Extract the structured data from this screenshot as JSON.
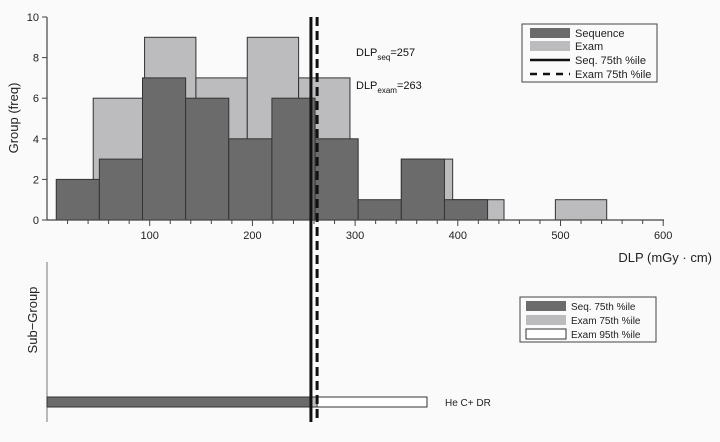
{
  "chart_data": [
    {
      "type": "bar",
      "subtype": "histogram",
      "panel": "top",
      "title": "",
      "xlabel": "DLP (mGy · cm)",
      "ylabel": "Group (freq)",
      "xlim": [
        0,
        600
      ],
      "ylim": [
        0,
        10
      ],
      "x_ticks": [
        100,
        200,
        300,
        400,
        500,
        600
      ],
      "y_ticks": [
        0,
        2,
        4,
        6,
        8,
        10
      ],
      "grid": false,
      "legend_position": "upper right",
      "series": [
        {
          "name": "Sequence",
          "color": "#6b6b6b",
          "bin_edges": [
            9,
            51,
            93,
            135,
            177,
            219,
            261,
            303,
            345,
            387,
            429
          ],
          "values": [
            2,
            3,
            7,
            6,
            4,
            6,
            4,
            1,
            3,
            1
          ]
        },
        {
          "name": "Exam",
          "color": "#bcbcbf",
          "bin_edges": [
            45,
            95,
            145,
            195,
            245,
            295,
            345,
            395,
            445,
            495,
            545
          ],
          "values": [
            6,
            9,
            7,
            9,
            7,
            0,
            3,
            1,
            0,
            1
          ]
        }
      ],
      "reference_lines": [
        {
          "name": "Seq. 75th %ile",
          "x": 257,
          "style": "solid",
          "color": "#111111"
        },
        {
          "name": "Exam 75th %ile",
          "x": 263,
          "style": "dashed",
          "color": "#111111"
        }
      ],
      "annotations": [
        {
          "text": "DLP",
          "sub": "seq",
          "value": "=257"
        },
        {
          "text": "DLP",
          "sub": "exam",
          "value": "=263"
        }
      ],
      "legend": [
        "Sequence",
        "Exam",
        "Seq. 75th %ile",
        "Exam 75th %ile"
      ]
    },
    {
      "type": "bar",
      "subtype": "horizontal-range",
      "panel": "bottom",
      "ylabel": "Sub−Group",
      "categories": [
        "He C+ DR"
      ],
      "series": [
        {
          "name": "Seq. 75th %ile",
          "color": "#6b6b6b",
          "values": [
            257
          ]
        },
        {
          "name": "Exam 75th %ile",
          "color": "#bcbcbf",
          "values": [
            263
          ]
        },
        {
          "name": "Exam 95th %ile",
          "color": "#ffffff",
          "values": [
            370
          ]
        }
      ],
      "legend": [
        "Seq. 75th %ile",
        "Exam 75th %ile",
        "Exam 95th %ile"
      ]
    }
  ],
  "top_panel": {
    "ylabel": "Group (freq)",
    "xlabel": "DLP (mGy · cm)",
    "annot_seq": {
      "main": "DLP",
      "sub": "seq",
      "value": "=257"
    },
    "annot_exam": {
      "main": "DLP",
      "sub": "exam",
      "value": "=263"
    },
    "legend": [
      "Sequence",
      "Exam",
      "Seq. 75th %ile",
      "Exam 75th %ile"
    ]
  },
  "bottom_panel": {
    "ylabel": "Sub−Group",
    "row_label": "He C+ DR",
    "legend": [
      "Seq. 75th %ile",
      "Exam 75th %ile",
      "Exam 95th %ile"
    ]
  },
  "colors": {
    "sequence": "#6b6b6b",
    "exam": "#bcbcbf",
    "exam95": "#ffffff",
    "edge": "#333333",
    "line": "#111111"
  }
}
